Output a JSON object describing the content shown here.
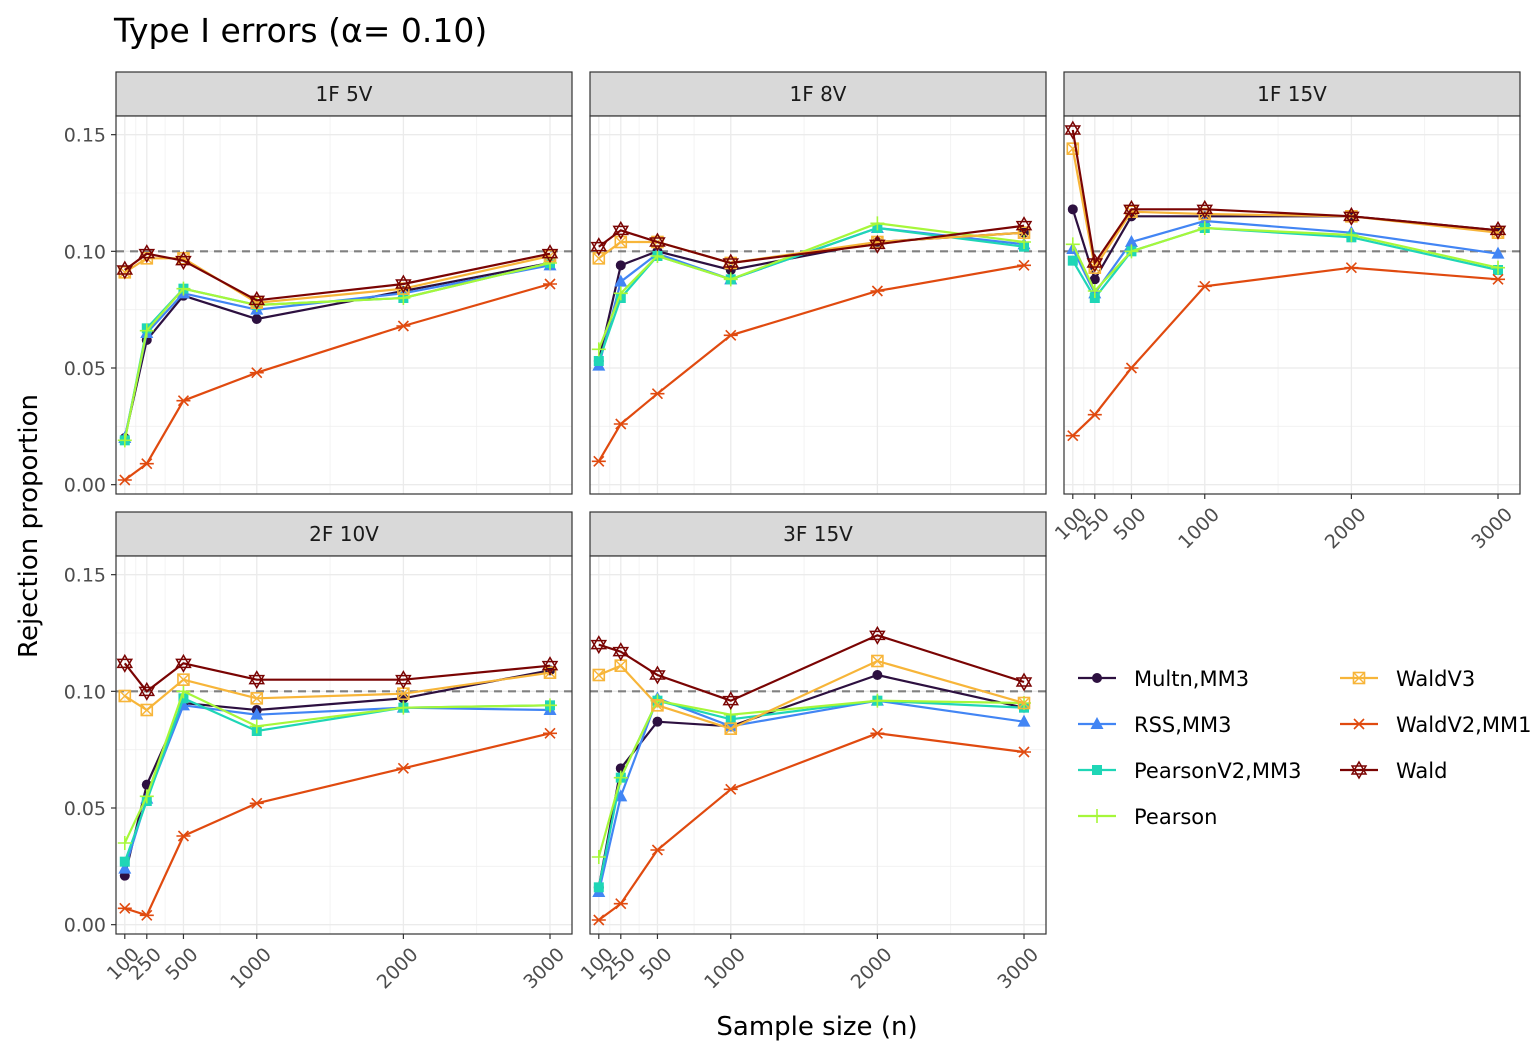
{
  "chart_data": {
    "type": "line",
    "title": "Type I errors (α= 0.10)",
    "xlabel": "Sample size (n)",
    "ylabel": "Rejection proportion",
    "x": [
      100,
      250,
      500,
      1000,
      2000,
      3000
    ],
    "x_tick_labels": [
      "100",
      "250",
      "500",
      "1000",
      "2000",
      "3000"
    ],
    "y_ticks": [
      0.0,
      0.05,
      0.1,
      0.15
    ],
    "y_tick_labels": [
      "0.00",
      "0.05",
      "0.10",
      "0.15"
    ],
    "ylim": [
      -0.004,
      0.158
    ],
    "reference_line": 0.1,
    "grid": true,
    "legend_position": "right",
    "series_meta": [
      {
        "name": "Multn,MM3",
        "color": "#2d1040",
        "marker": "circle"
      },
      {
        "name": "RSS,MM3",
        "color": "#4285f4",
        "marker": "triangle"
      },
      {
        "name": "PearsonV2,MM3",
        "color": "#1fd6b6",
        "marker": "square"
      },
      {
        "name": "Pearson",
        "color": "#a6f73a",
        "marker": "plus"
      },
      {
        "name": "WaldV3",
        "color": "#f7b539",
        "marker": "boxed-x"
      },
      {
        "name": "WaldV2,MM1",
        "color": "#e04a0f",
        "marker": "asterisk"
      },
      {
        "name": "Wald",
        "color": "#7a0403",
        "marker": "star"
      }
    ],
    "panels": [
      {
        "label": "1F 5V",
        "values": [
          [
            0.02,
            0.062,
            0.081,
            0.071,
            0.083,
            0.095
          ],
          [
            0.02,
            0.065,
            0.082,
            0.075,
            0.082,
            0.094
          ],
          [
            0.019,
            0.067,
            0.084,
            0.077,
            0.08,
            0.095
          ],
          [
            0.019,
            0.066,
            0.084,
            0.077,
            0.08,
            0.095
          ],
          [
            0.091,
            0.097,
            0.097,
            0.078,
            0.084,
            0.098
          ],
          [
            0.002,
            0.009,
            0.036,
            0.048,
            0.068,
            0.086
          ],
          [
            0.092,
            0.099,
            0.096,
            0.079,
            0.086,
            0.099
          ]
        ]
      },
      {
        "label": "1F 8V",
        "values": [
          [
            0.053,
            0.094,
            0.1,
            0.092,
            0.104,
            0.108
          ],
          [
            0.051,
            0.087,
            0.099,
            0.088,
            0.11,
            0.103
          ],
          [
            0.053,
            0.08,
            0.098,
            0.088,
            0.11,
            0.102
          ],
          [
            0.058,
            0.082,
            0.098,
            0.088,
            0.112,
            0.104
          ],
          [
            0.097,
            0.104,
            0.104,
            0.095,
            0.104,
            0.108
          ],
          [
            0.01,
            0.026,
            0.039,
            0.064,
            0.083,
            0.094
          ],
          [
            0.102,
            0.109,
            0.104,
            0.095,
            0.103,
            0.111
          ]
        ]
      },
      {
        "label": "1F 15V",
        "values": [
          [
            0.118,
            0.088,
            0.115,
            0.115,
            0.115,
            0.109
          ],
          [
            0.101,
            0.082,
            0.104,
            0.113,
            0.108,
            0.099
          ],
          [
            0.096,
            0.08,
            0.1,
            0.11,
            0.106,
            0.092
          ],
          [
            0.103,
            0.083,
            0.1,
            0.11,
            0.107,
            0.093
          ],
          [
            0.144,
            0.093,
            0.117,
            0.116,
            0.115,
            0.108
          ],
          [
            0.021,
            0.03,
            0.05,
            0.085,
            0.093,
            0.088
          ],
          [
            0.152,
            0.095,
            0.118,
            0.118,
            0.115,
            0.109
          ]
        ]
      },
      {
        "label": "2F 10V",
        "values": [
          [
            0.021,
            0.06,
            0.095,
            0.092,
            0.097,
            0.109
          ],
          [
            0.024,
            0.054,
            0.094,
            0.09,
            0.093,
            0.092
          ],
          [
            0.027,
            0.053,
            0.097,
            0.083,
            0.093,
            0.094
          ],
          [
            0.035,
            0.055,
            0.1,
            0.085,
            0.093,
            0.094
          ],
          [
            0.098,
            0.092,
            0.105,
            0.097,
            0.099,
            0.108
          ],
          [
            0.007,
            0.004,
            0.038,
            0.052,
            0.067,
            0.082
          ],
          [
            0.112,
            0.1,
            0.112,
            0.105,
            0.105,
            0.111
          ]
        ]
      },
      {
        "label": "3F 15V",
        "values": [
          [
            0.016,
            0.067,
            0.087,
            0.085,
            0.107,
            0.093
          ],
          [
            0.014,
            0.055,
            0.097,
            0.085,
            0.096,
            0.087
          ],
          [
            0.016,
            0.063,
            0.096,
            0.088,
            0.096,
            0.093
          ],
          [
            0.029,
            0.063,
            0.096,
            0.09,
            0.096,
            0.095
          ],
          [
            0.107,
            0.111,
            0.094,
            0.084,
            0.113,
            0.095
          ],
          [
            0.002,
            0.009,
            0.032,
            0.058,
            0.082,
            0.074
          ],
          [
            0.12,
            0.117,
            0.107,
            0.096,
            0.124,
            0.104
          ]
        ]
      }
    ]
  }
}
